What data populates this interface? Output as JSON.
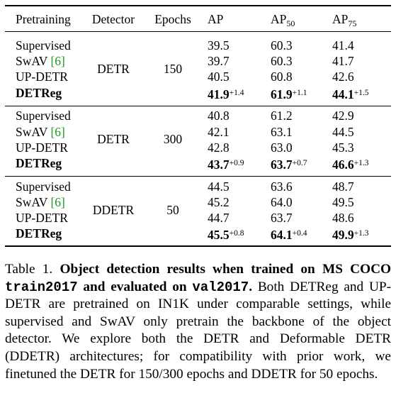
{
  "table": {
    "header": [
      {
        "text": "Pretraining"
      },
      {
        "text": "Detector"
      },
      {
        "text": "Epochs"
      },
      {
        "text": "AP"
      },
      {
        "text": "AP",
        "sub": "50"
      },
      {
        "text": "AP",
        "sub": "75"
      }
    ],
    "groups": [
      {
        "detector": "DETR",
        "epochs": "150",
        "rows": [
          {
            "pretraining": "Supervised",
            "ap": "39.5",
            "ap50": "60.3",
            "ap75": "41.4"
          },
          {
            "pretraining": "SwAV",
            "cite": "[6]",
            "ap": "39.7",
            "ap50": "60.3",
            "ap75": "41.7"
          },
          {
            "pretraining": "UP-DETR",
            "ap": "40.5",
            "ap50": "60.8",
            "ap75": "42.6"
          },
          {
            "pretraining": "DETReg",
            "bold": true,
            "ap": "41.9",
            "ap_gain": "+1.4",
            "ap50": "61.9",
            "ap50_gain": "+1.1",
            "ap75": "44.1",
            "ap75_gain": "+1.5"
          }
        ]
      },
      {
        "detector": "DETR",
        "epochs": "300",
        "rows": [
          {
            "pretraining": "Supervised",
            "ap": "40.8",
            "ap50": "61.2",
            "ap75": "42.9"
          },
          {
            "pretraining": "SwAV",
            "cite": "[6]",
            "ap": "42.1",
            "ap50": "63.1",
            "ap75": "44.5"
          },
          {
            "pretraining": "UP-DETR",
            "ap": "42.8",
            "ap50": "63.0",
            "ap75": "45.3"
          },
          {
            "pretraining": "DETReg",
            "bold": true,
            "ap": "43.7",
            "ap_gain": "+0.9",
            "ap50": "63.7",
            "ap50_gain": "+0.7",
            "ap75": "46.6",
            "ap75_gain": "+1.3"
          }
        ]
      },
      {
        "detector": "DDETR",
        "epochs": "50",
        "rows": [
          {
            "pretraining": "Supervised",
            "ap": "44.5",
            "ap50": "63.6",
            "ap75": "48.7"
          },
          {
            "pretraining": "SwAV",
            "cite": "[6]",
            "ap": "45.2",
            "ap50": "64.0",
            "ap75": "49.5"
          },
          {
            "pretraining": "UP-DETR",
            "ap": "44.7",
            "ap50": "63.7",
            "ap75": "48.6"
          },
          {
            "pretraining": "DETReg",
            "bold": true,
            "ap": "45.5",
            "ap_gain": "+0.8",
            "ap50": "64.1",
            "ap50_gain": "+0.4",
            "ap75": "49.9",
            "ap75_gain": "+1.3"
          }
        ]
      }
    ]
  },
  "caption": {
    "label": "Table 1.",
    "parts": [
      {
        "text": "Object detection results when trained on MS COCO",
        "style": "bold"
      },
      {
        "text": "train2017",
        "style": "mono"
      },
      {
        "text": "and evaluated on",
        "style": "bold"
      },
      {
        "text": "val2017",
        "style": "mono"
      },
      {
        "text": ".",
        "style": "bold"
      },
      {
        "text": "Both DETReg and UP-DETR are pretrained on IN1K under comparable settings, while supervised and SwAV only pretrain the backbone of the object detector. We explore both the DETR and Deformable DETR (DDETR) architectures; for compatibility with prior work, we finetuned the DETR for 150/300 epochs and DDETR for 50 epochs.",
        "style": "normal"
      }
    ]
  }
}
